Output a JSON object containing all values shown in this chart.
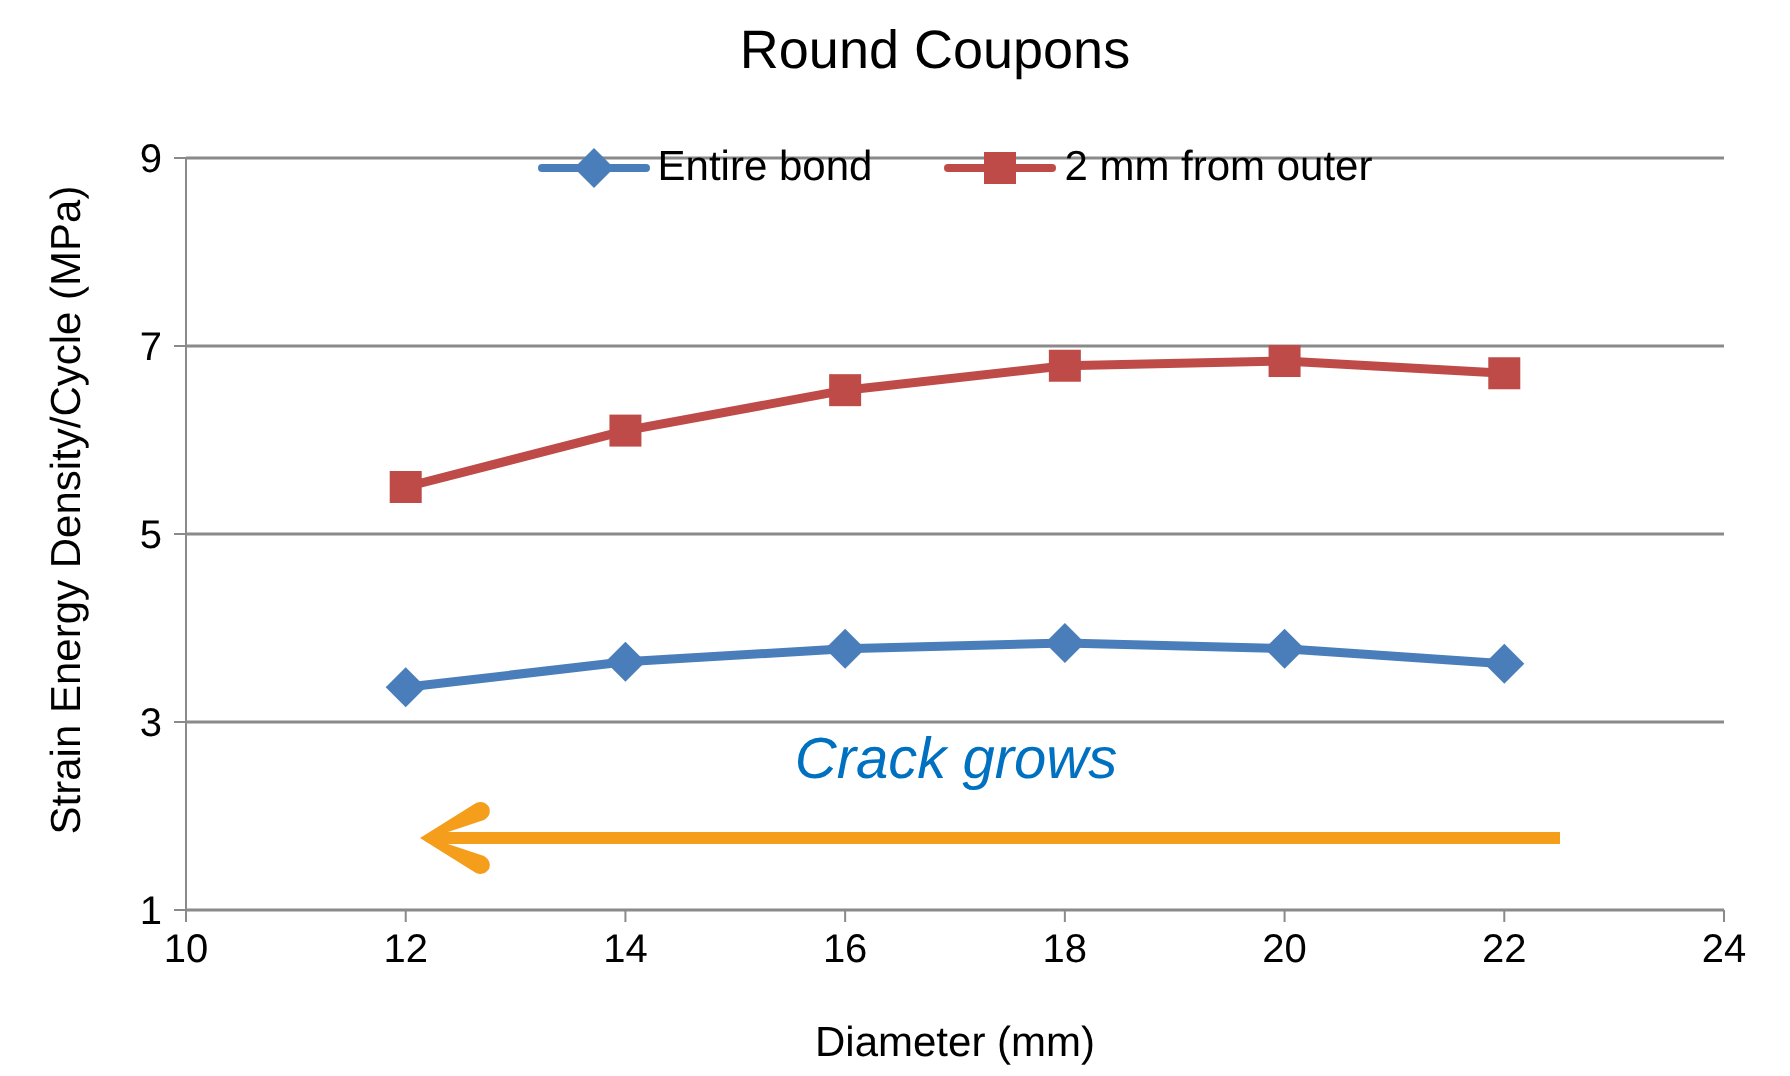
{
  "chart_data": {
    "type": "line",
    "title": "Round Coupons",
    "xlabel": "Diameter (mm)",
    "ylabel": "Strain Energy Density/Cycle (MPa)",
    "x": [
      12,
      14,
      16,
      18,
      20,
      22
    ],
    "series": [
      {
        "name": "Entire bond",
        "color": "#4a7ebb",
        "marker": "diamond",
        "values": [
          3.37,
          3.64,
          3.78,
          3.84,
          3.78,
          3.62
        ]
      },
      {
        "name": "2 mm from outer",
        "color": "#be4b48",
        "marker": "square",
        "values": [
          5.5,
          6.1,
          6.53,
          6.79,
          6.84,
          6.71
        ]
      }
    ],
    "xlim": [
      10,
      24
    ],
    "xticks": [
      10,
      12,
      14,
      16,
      18,
      20,
      22,
      24
    ],
    "ylim": [
      1,
      9
    ],
    "yticks": [
      1,
      3,
      5,
      7,
      9
    ],
    "grid": "y",
    "legend": "top",
    "line_style": "solid",
    "annotations": [
      "Crack grows"
    ]
  }
}
